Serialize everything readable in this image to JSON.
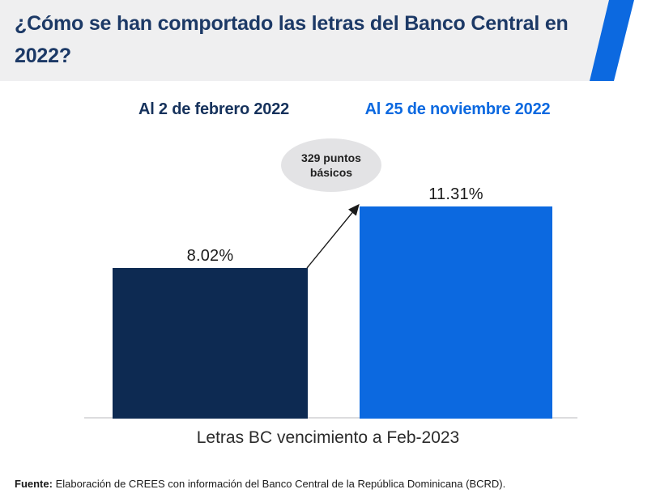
{
  "header": {
    "title": "¿Cómo se han comportado las letras del Banco Central en 2022?"
  },
  "legend": {
    "items": [
      {
        "label": "Al 2 de febrero 2022",
        "color": "#16325c"
      },
      {
        "label": "Al 25 de noviembre 2022",
        "color": "#0c69e0"
      }
    ]
  },
  "annotation": {
    "text": "329 puntos básicos"
  },
  "footer": {
    "prefix": "Fuente:",
    "text": " Elaboración de CREES con información del Banco Central de la República Dominicana (BCRD)."
  },
  "colors": {
    "header_bg": "#efeff0",
    "accent_blue": "#0c69e0",
    "bar_navy": "#0d2a52",
    "title_navy": "#1c3966",
    "axis_line": "#dcdcde",
    "callout_bg": "#e3e3e5"
  },
  "chart_data": {
    "type": "bar",
    "title": "¿Cómo se han comportado las letras del Banco Central en 2022?",
    "categories": [
      "Letras BC vencimiento a Feb-2023"
    ],
    "series": [
      {
        "name": "Al 2 de febrero 2022",
        "values": [
          8.02
        ],
        "color": "#0d2a52",
        "data_label": "8.02%"
      },
      {
        "name": "Al 25 de noviembre 2022",
        "values": [
          11.31
        ],
        "color": "#0c69e0",
        "data_label": "11.31%"
      }
    ],
    "annotation": "329 puntos básicos (difference between bars)",
    "xlabel": "Letras BC vencimiento a Feb-2023",
    "ylabel": "",
    "ylim": [
      0,
      11.31
    ],
    "grid": false,
    "y_axis_visible": false,
    "legend_position": "top"
  }
}
